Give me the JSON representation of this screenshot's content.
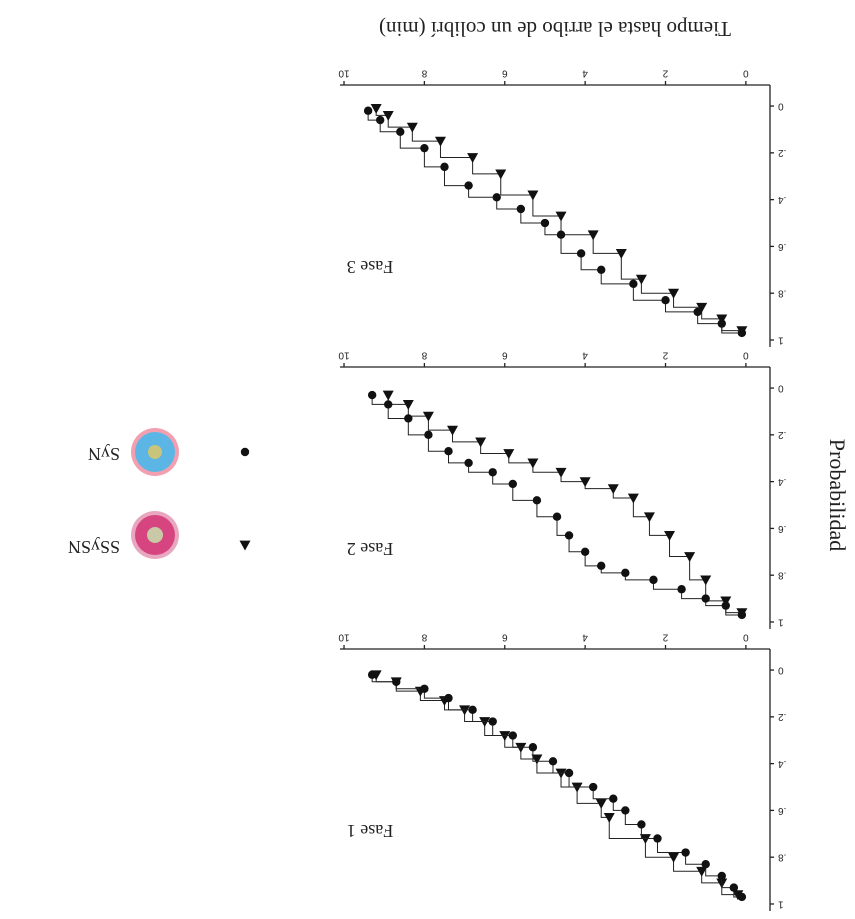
{
  "x_label": "Tiempo hasta el arribo de un colibrí (min)",
  "y_label": "Probabilidad",
  "legend": [
    {
      "name": "SSySN"
    },
    {
      "name": "SyN"
    }
  ],
  "chart_data": [
    {
      "type": "step",
      "title": "Fase 1",
      "xlim": [
        -0.6,
        10.1
      ],
      "ylim": [
        -0.09,
        1.03
      ],
      "xticks": [
        0,
        2,
        4,
        6,
        8,
        10
      ],
      "yticks": [
        0,
        {
          "value": 0.2,
          "label": ".2"
        },
        {
          "value": 0.4,
          "label": ".4"
        },
        {
          "value": 0.6,
          "label": ".6"
        },
        {
          "value": 0.8,
          "label": ".8"
        },
        1
      ],
      "series": [
        {
          "marker": "triangle",
          "color": "#111111",
          "x": [
            0.2,
            0.6,
            1.1,
            1.8,
            2.5,
            3.4,
            3.6,
            4.2,
            4.6,
            5.2,
            5.6,
            6.0,
            6.5,
            7.0,
            7.5,
            8.1,
            8.7,
            9.2
          ],
          "values": [
            0.96,
            0.91,
            0.86,
            0.8,
            0.72,
            0.63,
            0.57,
            0.5,
            0.44,
            0.38,
            0.33,
            0.28,
            0.22,
            0.17,
            0.13,
            0.09,
            0.05,
            0.02
          ]
        },
        {
          "marker": "circle",
          "color": "#111111",
          "x": [
            0.1,
            0.3,
            0.6,
            1.0,
            1.5,
            2.2,
            2.6,
            3.0,
            3.3,
            3.8,
            4.4,
            4.8,
            5.3,
            5.8,
            6.3,
            6.8,
            7.4,
            8.0,
            8.7,
            9.3
          ],
          "values": [
            0.97,
            0.93,
            0.88,
            0.83,
            0.78,
            0.72,
            0.66,
            0.6,
            0.55,
            0.5,
            0.44,
            0.39,
            0.33,
            0.28,
            0.22,
            0.17,
            0.12,
            0.08,
            0.05,
            0.02
          ]
        }
      ]
    },
    {
      "type": "step",
      "title": "Fase 2",
      "xlim": [
        -0.6,
        10.1
      ],
      "ylim": [
        -0.09,
        1.03
      ],
      "xticks": [
        0,
        2,
        4,
        6,
        8,
        10
      ],
      "yticks": [
        0,
        {
          "value": 0.2,
          "label": ".2"
        },
        {
          "value": 0.4,
          "label": ".4"
        },
        {
          "value": 0.6,
          "label": ".6"
        },
        {
          "value": 0.8,
          "label": ".8"
        },
        1
      ],
      "series": [
        {
          "marker": "triangle",
          "color": "#111111",
          "x": [
            0.1,
            0.5,
            1.0,
            1.4,
            1.9,
            2.4,
            2.8,
            3.3,
            4.0,
            4.6,
            5.3,
            5.9,
            6.6,
            7.3,
            7.9,
            8.4,
            8.9
          ],
          "values": [
            0.96,
            0.91,
            0.82,
            0.72,
            0.63,
            0.55,
            0.47,
            0.43,
            0.4,
            0.36,
            0.32,
            0.28,
            0.23,
            0.18,
            0.12,
            0.07,
            0.03
          ]
        },
        {
          "marker": "circle",
          "color": "#111111",
          "x": [
            0.1,
            0.5,
            1.0,
            1.6,
            2.3,
            3.0,
            3.6,
            4.0,
            4.4,
            4.7,
            5.2,
            5.8,
            6.3,
            6.9,
            7.4,
            7.9,
            8.4,
            8.9,
            9.3
          ],
          "values": [
            0.97,
            0.93,
            0.9,
            0.86,
            0.82,
            0.79,
            0.76,
            0.7,
            0.63,
            0.55,
            0.48,
            0.41,
            0.36,
            0.32,
            0.27,
            0.2,
            0.13,
            0.07,
            0.03
          ]
        }
      ]
    },
    {
      "type": "step",
      "title": "Fase 3",
      "xlim": [
        -0.6,
        10.1
      ],
      "ylim": [
        -0.09,
        1.03
      ],
      "xticks": [
        0,
        2,
        4,
        6,
        8,
        10
      ],
      "yticks": [
        0,
        {
          "value": 0.2,
          "label": ".2"
        },
        {
          "value": 0.4,
          "label": ".4"
        },
        {
          "value": 0.6,
          "label": ".6"
        },
        {
          "value": 0.8,
          "label": ".8"
        },
        1
      ],
      "series": [
        {
          "marker": "triangle",
          "color": "#111111",
          "x": [
            0.1,
            0.6,
            1.1,
            1.8,
            2.6,
            3.1,
            3.8,
            4.6,
            5.3,
            6.1,
            6.8,
            7.6,
            8.3,
            8.9,
            9.2
          ],
          "values": [
            0.96,
            0.91,
            0.86,
            0.8,
            0.74,
            0.63,
            0.55,
            0.47,
            0.38,
            0.29,
            0.22,
            0.15,
            0.09,
            0.04,
            0.01
          ]
        },
        {
          "marker": "circle",
          "color": "#111111",
          "x": [
            0.1,
            0.6,
            1.2,
            2.0,
            2.8,
            3.6,
            4.1,
            4.6,
            5.0,
            5.6,
            6.2,
            6.9,
            7.5,
            8.0,
            8.6,
            9.1,
            9.4
          ],
          "values": [
            0.97,
            0.93,
            0.88,
            0.83,
            0.76,
            0.7,
            0.63,
            0.55,
            0.5,
            0.44,
            0.39,
            0.34,
            0.26,
            0.18,
            0.11,
            0.06,
            0.02
          ]
        }
      ]
    }
  ]
}
